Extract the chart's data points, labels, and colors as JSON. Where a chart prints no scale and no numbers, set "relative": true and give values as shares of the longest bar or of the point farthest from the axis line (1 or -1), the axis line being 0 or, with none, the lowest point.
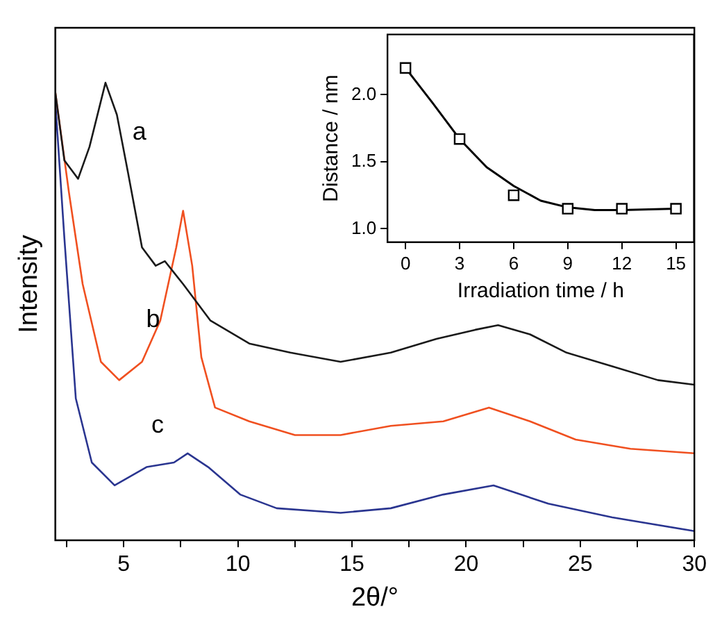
{
  "chart_data": [
    {
      "type": "line",
      "xlabel": "2θ/°",
      "ylabel": "Intensity",
      "relative": true,
      "tick_labels": "x",
      "xlim": [
        2,
        30
      ],
      "xticks": [
        {
          "value": 2.5,
          "label": null
        },
        5,
        {
          "value": 7.5,
          "label": null
        },
        10,
        {
          "value": 12.5,
          "label": null
        },
        15,
        {
          "value": 17.5,
          "label": null
        },
        20,
        {
          "value": 22.5,
          "label": null
        },
        25,
        {
          "value": 27.5,
          "label": null
        },
        30
      ],
      "series": [
        {
          "name": "a",
          "color": "#1a1a1a",
          "x": [
            2.0,
            2.4,
            3.0,
            3.5,
            4.2,
            4.7,
            5.2,
            5.8,
            6.4,
            6.8,
            7.6,
            8.8,
            10.5,
            12.3,
            14.5,
            16.7,
            18.7,
            20.4,
            21.4,
            22.8,
            24.4,
            26.4,
            28.4,
            30
          ],
          "values": [
            0.98,
            0.83,
            0.79,
            0.86,
            1.0,
            0.93,
            0.8,
            0.64,
            0.6,
            0.61,
            0.56,
            0.48,
            0.43,
            0.41,
            0.39,
            0.41,
            0.44,
            0.46,
            0.47,
            0.45,
            0.41,
            0.38,
            0.35,
            0.34
          ]
        },
        {
          "name": "b",
          "color": "#f05020",
          "x": [
            2.0,
            2.6,
            3.2,
            4.0,
            4.8,
            5.8,
            6.6,
            7.3,
            7.6,
            8.0,
            8.4,
            9.0,
            10.5,
            12.5,
            14.5,
            16.7,
            19.0,
            21.0,
            22.8,
            24.8,
            27.2,
            30
          ],
          "values": [
            0.98,
            0.76,
            0.56,
            0.39,
            0.35,
            0.39,
            0.48,
            0.64,
            0.72,
            0.6,
            0.4,
            0.29,
            0.26,
            0.23,
            0.23,
            0.25,
            0.26,
            0.29,
            0.26,
            0.22,
            0.2,
            0.19
          ]
        },
        {
          "name": "c",
          "color": "#2a3590",
          "x": [
            2.0,
            2.4,
            2.9,
            3.6,
            4.6,
            6.0,
            7.2,
            7.8,
            8.7,
            10.1,
            11.7,
            14.5,
            16.7,
            19.0,
            21.2,
            23.6,
            26.4,
            30
          ],
          "values": [
            0.96,
            0.66,
            0.31,
            0.17,
            0.12,
            0.16,
            0.17,
            0.19,
            0.16,
            0.1,
            0.07,
            0.06,
            0.07,
            0.1,
            0.12,
            0.08,
            0.05,
            0.02
          ]
        }
      ]
    },
    {
      "type": "scatter",
      "xlabel": "Irradiation time / h",
      "ylabel": "Distance / nm",
      "xlim": [
        -1,
        16
      ],
      "ylim": [
        0.9,
        2.45
      ],
      "xticks": [
        0,
        3,
        6,
        9,
        12,
        15
      ],
      "yticks": [
        {
          "value": 1,
          "label": "1.0"
        },
        1.5,
        {
          "value": 2,
          "label": "2.0"
        }
      ],
      "marker": "square",
      "series": [
        {
          "color": "#000000",
          "x": [
            0,
            3,
            6,
            9,
            12,
            15
          ],
          "values": [
            2.2,
            1.67,
            1.25,
            1.15,
            1.15,
            1.15
          ]
        },
        {
          "type": "line",
          "marker": "none",
          "color": "#000000",
          "x": [
            0,
            1.5,
            3,
            4.5,
            6,
            7.5,
            9,
            10.5,
            12,
            15
          ],
          "values": [
            2.2,
            1.94,
            1.67,
            1.46,
            1.32,
            1.21,
            1.16,
            1.14,
            1.14,
            1.15
          ]
        }
      ]
    }
  ]
}
